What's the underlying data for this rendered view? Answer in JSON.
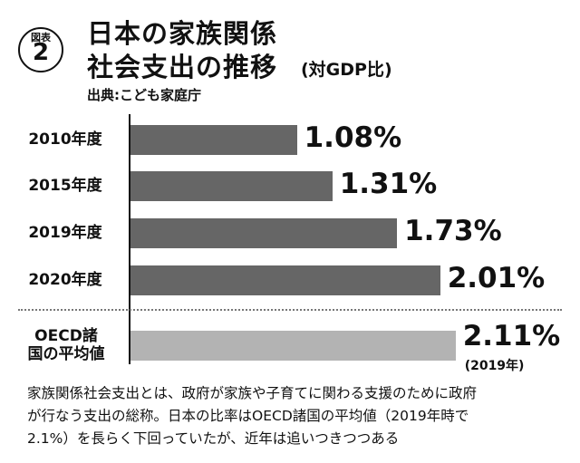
{
  "badge": {
    "label": "図表",
    "number": "2"
  },
  "title_lines": [
    "日本の家族関係",
    "社会支出の推移"
  ],
  "title_suffix": "(対GDP比)",
  "source": "出典:こども家庭庁",
  "chart_data": {
    "type": "bar",
    "categories": [
      "2010年度",
      "2015年度",
      "2019年度",
      "2020年度",
      "OECD諸国の平均値"
    ],
    "values": [
      1.08,
      1.31,
      1.73,
      2.01,
      2.11
    ],
    "value_labels": [
      "1.08%",
      "1.31%",
      "1.73%",
      "2.01%",
      "2.11%"
    ],
    "colors": [
      "#666666",
      "#666666",
      "#666666",
      "#666666",
      "#b3b3b3"
    ],
    "annotation": "(2019年)"
  },
  "caption_lines": [
    "家族関係社会支出とは、政府が家族や子育てに関わる支援のために政府",
    "が行なう支出の総称。日本の比率はOECD諸国の平均値（2019年時で",
    "2.1%）を長らく下回っていたが、近年は追いつきつつある"
  ]
}
